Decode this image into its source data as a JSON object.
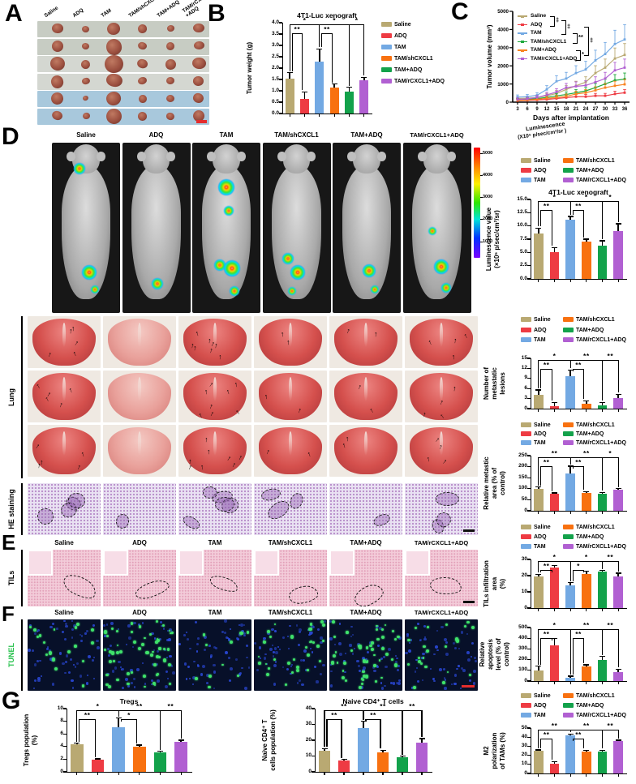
{
  "panel_labels": {
    "a": "A",
    "b": "B",
    "c": "C",
    "d": "D",
    "e": "E",
    "f": "F",
    "g": "G"
  },
  "groups": [
    {
      "name": "Saline",
      "color": "#b9a972",
      "line_color": "#b9a972"
    },
    {
      "name": "ADQ",
      "color": "#ee3b43",
      "line_color": "#ee3b43"
    },
    {
      "name": "TAM",
      "color": "#73a9e3",
      "line_color": "#73a9e3"
    },
    {
      "name": "TAM/shCXCL1",
      "color": "#f87110",
      "line_color": "#1ea93c"
    },
    {
      "name": "TAM+ADQ",
      "color": "#13a24b",
      "line_color": "#f8831f"
    },
    {
      "name": "TAM/rCXCL1+ADQ",
      "color": "#b160d2",
      "line_color": "#b160d2"
    }
  ],
  "panel_a": {
    "column_labels": [
      "Saline",
      "ADQ",
      "TAM",
      "TAM/shCXCL1",
      "TAM+ADQ",
      "TAM/rCXCL1\n+ADQ"
    ],
    "num_rows": 6,
    "tumor_rel_sizes": [
      0.8,
      0.45,
      1.0,
      0.62,
      0.55,
      0.72
    ],
    "row_backgrounds": [
      "#c7ccc3",
      "#c7ccc3",
      "#d4d7d1",
      "#d4d7d1",
      "#a8c8dc",
      "#a8c8dc"
    ]
  },
  "panel_d": {
    "colorbar": {
      "title_line1": "Luminescence",
      "title_line2": "(X10⁵ p/sec/cm²/sr )",
      "ticks": [
        "5000",
        "4000",
        "3000",
        "2000",
        "1000"
      ]
    },
    "mice_glow_spots": [
      [
        [
          40,
          15,
          7
        ],
        [
          55,
          76,
          9
        ],
        [
          63,
          86,
          5
        ]
      ],
      [
        [
          52,
          83,
          7
        ]
      ],
      [
        [
          50,
          26,
          10
        ],
        [
          54,
          40,
          6
        ],
        [
          40,
          72,
          7
        ],
        [
          58,
          74,
          10
        ],
        [
          62,
          87,
          6
        ]
      ],
      [
        [
          38,
          68,
          7
        ],
        [
          52,
          76,
          9
        ],
        [
          44,
          87,
          5
        ]
      ],
      [
        [
          54,
          75,
          8
        ],
        [
          62,
          86,
          5
        ]
      ],
      [
        [
          44,
          52,
          5
        ],
        [
          56,
          73,
          9
        ],
        [
          64,
          85,
          6
        ]
      ]
    ]
  },
  "lung": {
    "label": "Lung",
    "arrow_counts": [
      5,
      0,
      8,
      2,
      2,
      4
    ]
  },
  "he": {
    "label": "HE staining",
    "region_counts": [
      4,
      1,
      5,
      3,
      1,
      3
    ]
  },
  "panel_e": {
    "row_label": "TILs"
  },
  "panel_f": {
    "row_label": "TUNEL",
    "green_dot_counts": [
      18,
      55,
      10,
      30,
      46,
      22
    ]
  },
  "chart_data": [
    {
      "id": "tumor_weight",
      "type": "bar",
      "title": "4T1-Luc  xenograft",
      "ylabel": "Tumor weight (g)",
      "ylim": [
        0,
        4
      ],
      "yticks": [
        "0.0",
        "0.5",
        "1.0",
        "1.5",
        "2.0",
        "2.5",
        "3.0",
        "3.5",
        "4.0"
      ],
      "categories": [
        "Saline",
        "ADQ",
        "TAM",
        "TAM/shCXCL1",
        "TAM+ADQ",
        "TAM/rCXCL1+ADQ"
      ],
      "values": [
        1.55,
        0.65,
        2.3,
        1.15,
        0.95,
        1.45
      ],
      "errors": [
        0.25,
        0.3,
        0.55,
        0.15,
        0.2,
        0.15
      ],
      "sig": [
        [
          0,
          1,
          "**",
          1
        ],
        [
          0,
          2,
          "*",
          0
        ],
        [
          2,
          3,
          "**",
          1
        ],
        [
          2,
          4,
          "*",
          0
        ],
        [
          4,
          5,
          "*",
          0
        ]
      ],
      "legend_position": "right-1col"
    },
    {
      "id": "tumor_volume",
      "type": "line",
      "ylabel": "Tumor volume (mm³)",
      "xlabel": "Days after implantation",
      "ylim": [
        0,
        5000
      ],
      "yticks": [
        "0",
        "1000",
        "2000",
        "3000",
        "4000",
        "5000"
      ],
      "x": [
        3,
        6,
        9,
        12,
        15,
        18,
        21,
        24,
        27,
        30,
        33,
        36
      ],
      "series": [
        {
          "name": "Saline",
          "values": [
            200,
            220,
            260,
            350,
            480,
            700,
            900,
            1100,
            1600,
            1900,
            2400,
            2600
          ]
        },
        {
          "name": "ADQ",
          "values": [
            80,
            100,
            120,
            150,
            200,
            250,
            300,
            300,
            350,
            350,
            450,
            520
          ]
        },
        {
          "name": "TAM",
          "values": [
            280,
            300,
            380,
            700,
            1150,
            1300,
            1600,
            1800,
            2300,
            2650,
            3200,
            3450
          ]
        },
        {
          "name": "TAM/shCXCL1",
          "values": [
            120,
            150,
            200,
            260,
            350,
            420,
            520,
            620,
            800,
            1000,
            1200,
            1270
          ]
        },
        {
          "name": "TAM+ADQ",
          "values": [
            100,
            120,
            160,
            210,
            260,
            320,
            450,
            520,
            650,
            800,
            900,
            980
          ]
        },
        {
          "name": "TAM/rCXCL1+ADQ",
          "values": [
            150,
            180,
            260,
            400,
            560,
            800,
            870,
            920,
            1100,
            1300,
            1750,
            1900
          ]
        }
      ],
      "legend_sig": [
        "‡",
        "‡",
        "**",
        "‡",
        "*"
      ],
      "legend_position": "inside-top-left"
    },
    {
      "id": "luminescence",
      "type": "bar",
      "title": "4T1-Luc  xenograft",
      "ylabel": "Luminescence value\n(×10⁵ p/sec/cm²/sr)",
      "ylim": [
        0,
        15
      ],
      "yticks": [
        "0.0",
        "2.5",
        "5.0",
        "7.5",
        "10.0",
        "12.5",
        "15.0"
      ],
      "categories": [
        "Saline",
        "ADQ",
        "TAM",
        "TAM/shCXCL1",
        "TAM+ADQ",
        "TAM/rCXCL1+ADQ"
      ],
      "values": [
        8.6,
        5.0,
        11.1,
        7.0,
        6.3,
        9.1
      ],
      "errors": [
        1.0,
        0.9,
        0.7,
        0.5,
        0.9,
        1.3
      ],
      "sig": [
        [
          0,
          1,
          "**",
          1
        ],
        [
          0,
          2,
          "*",
          0
        ],
        [
          2,
          3,
          "**",
          1
        ],
        [
          2,
          4,
          "*",
          0
        ],
        [
          4,
          5,
          "*",
          0
        ]
      ],
      "legend_position": "above-2col"
    },
    {
      "id": "met_lesions",
      "type": "bar",
      "ylabel": "Number of\nmetastatic lesions",
      "ylim": [
        0,
        15
      ],
      "yticks": [
        "0",
        "3",
        "6",
        "9",
        "12",
        "15"
      ],
      "categories": [
        "Saline",
        "ADQ",
        "TAM",
        "TAM/shCXCL1",
        "TAM+ADQ",
        "TAM/rCXCL1+ADQ"
      ],
      "values": [
        4.2,
        0.7,
        9.7,
        1.5,
        0.9,
        3.2
      ],
      "errors": [
        1.4,
        1.2,
        1.8,
        0.8,
        1.0,
        1.1
      ],
      "sig": [
        [
          0,
          1,
          "**",
          1
        ],
        [
          0,
          2,
          "*",
          0
        ],
        [
          2,
          3,
          "**",
          1
        ],
        [
          2,
          4,
          "**",
          0
        ],
        [
          4,
          5,
          "**",
          0
        ]
      ],
      "legend_position": "above-2col"
    },
    {
      "id": "met_area",
      "type": "bar",
      "ylabel": "Relative metastic\narea (% of control)",
      "ylim": [
        0,
        250
      ],
      "yticks": [
        "0",
        "50",
        "100",
        "150",
        "200",
        "250"
      ],
      "categories": [
        "Saline",
        "ADQ",
        "TAM",
        "TAM/shCXCL1",
        "TAM+ADQ",
        "TAM/rCXCL1+ADQ"
      ],
      "values": [
        100,
        76,
        170,
        80,
        79,
        97
      ],
      "errors": [
        8,
        5,
        32,
        7,
        5,
        4
      ],
      "sig": [
        [
          0,
          1,
          "**",
          1
        ],
        [
          0,
          2,
          "**",
          0
        ],
        [
          2,
          3,
          "**",
          1
        ],
        [
          2,
          4,
          "**",
          0
        ],
        [
          4,
          5,
          "*",
          0
        ]
      ],
      "legend_position": "above-2col"
    },
    {
      "id": "tils_area",
      "type": "bar",
      "ylabel": "TILs infiltration area\n(%)",
      "ylim": [
        0,
        30
      ],
      "yticks": [
        "0",
        "10",
        "20",
        "30"
      ],
      "categories": [
        "Saline",
        "ADQ",
        "TAM",
        "TAM/shCXCL1",
        "TAM+ADQ",
        "TAM/rCXCL1+ADQ"
      ],
      "values": [
        19.3,
        25.2,
        13.9,
        21.1,
        22.3,
        19.6
      ],
      "errors": [
        1.6,
        0.9,
        1.8,
        1.5,
        0.9,
        1.9
      ],
      "sig": [
        [
          0,
          1,
          "**",
          1
        ],
        [
          0,
          2,
          "*",
          0
        ],
        [
          2,
          3,
          "*",
          1
        ],
        [
          2,
          4,
          "*",
          0
        ],
        [
          4,
          5,
          "**",
          0
        ]
      ],
      "legend_position": "above-2col"
    },
    {
      "id": "apoptosis",
      "type": "bar",
      "ylabel": "Relative apoptosis\nlevel (% of control)",
      "ylim": [
        0,
        500
      ],
      "yticks": [
        "0",
        "100",
        "200",
        "300",
        "400",
        "500"
      ],
      "categories": [
        "Saline",
        "ADQ",
        "TAM",
        "TAM/shCXCL1",
        "TAM+ADQ",
        "TAM/rCXCL1+ADQ"
      ],
      "values": [
        100,
        335,
        30,
        135,
        195,
        80
      ],
      "errors": [
        40,
        65,
        15,
        18,
        35,
        30
      ],
      "sig": [
        [
          0,
          1,
          "**",
          1
        ],
        [
          0,
          2,
          "*",
          0
        ],
        [
          2,
          3,
          "**",
          1
        ],
        [
          2,
          4,
          "**",
          0
        ],
        [
          4,
          5,
          "**",
          0
        ]
      ],
      "legend_position": "none"
    },
    {
      "id": "tregs",
      "type": "bar",
      "title": "Tregs",
      "ylabel": "Tregs population\n(%)",
      "ylim": [
        0,
        10
      ],
      "yticks": [
        "0",
        "2",
        "4",
        "6",
        "8",
        "10"
      ],
      "categories": [
        "Saline",
        "ADQ",
        "TAM",
        "TAM/shCXCL1",
        "TAM+ADQ",
        "TAM/rCXCL1+ADQ"
      ],
      "values": [
        4.3,
        1.9,
        7.1,
        4.0,
        3.1,
        4.7
      ],
      "errors": [
        0.25,
        0.15,
        1.4,
        0.25,
        0.15,
        0.3
      ],
      "sig": [
        [
          0,
          1,
          "**",
          1
        ],
        [
          0,
          2,
          "*",
          0
        ],
        [
          2,
          3,
          "*",
          1
        ],
        [
          2,
          4,
          "**",
          0
        ],
        [
          4,
          5,
          "**",
          0
        ]
      ],
      "legend_position": "none"
    },
    {
      "id": "naive_cd4",
      "type": "bar",
      "title": "Naive CD4⁺ T cells",
      "ylabel": "Naive CD4⁺ T\ncells population (%)",
      "ylim": [
        0,
        40
      ],
      "yticks": [
        "0",
        "10",
        "20",
        "30",
        "40"
      ],
      "categories": [
        "Saline",
        "ADQ",
        "TAM",
        "TAM/shCXCL1",
        "TAM+ADQ",
        "TAM/rCXCL1+ADQ"
      ],
      "values": [
        13.5,
        7.0,
        27.5,
        12.5,
        9.0,
        18.5
      ],
      "errors": [
        1.2,
        0.9,
        4.5,
        1.1,
        0.9,
        2.6
      ],
      "sig": [
        [
          0,
          1,
          "**",
          1
        ],
        [
          0,
          2,
          "**",
          0
        ],
        [
          2,
          3,
          "**",
          1
        ],
        [
          2,
          4,
          "**",
          0
        ],
        [
          4,
          5,
          "**",
          0
        ]
      ],
      "legend_position": "none"
    },
    {
      "id": "m2_polarization",
      "type": "bar",
      "ylabel": "M2 polarization\nof TAMs (%)",
      "ylim": [
        0,
        50
      ],
      "yticks": [
        "0",
        "10",
        "20",
        "30",
        "40",
        "50"
      ],
      "categories": [
        "Saline",
        "ADQ",
        "TAM",
        "TAM/shCXCL1",
        "TAM+ADQ",
        "TAM/rCXCL1+ADQ"
      ],
      "values": [
        25,
        11,
        42,
        24.5,
        24.5,
        35.5
      ],
      "errors": [
        1.0,
        2.0,
        1.5,
        1.3,
        1.0,
        1.2
      ],
      "sig": [
        [
          0,
          1,
          "**",
          1
        ],
        [
          0,
          2,
          "**",
          0
        ],
        [
          2,
          3,
          "**",
          1
        ],
        [
          2,
          4,
          "**",
          0
        ],
        [
          4,
          5,
          "**",
          0
        ]
      ],
      "legend_position": "above-2col"
    }
  ]
}
